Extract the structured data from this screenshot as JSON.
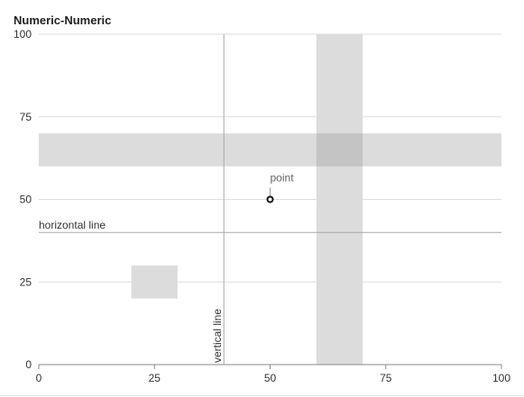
{
  "chart_data": {
    "type": "scatter",
    "title": "Numeric-Numeric",
    "xlabel": "",
    "ylabel": "",
    "xlim": [
      0,
      100
    ],
    "ylim": [
      0,
      100
    ],
    "x_ticks": [
      0,
      25,
      50,
      75,
      100
    ],
    "y_ticks": [
      0,
      25,
      50,
      75,
      100
    ],
    "grid": "horizontal",
    "points": [
      {
        "x": 50,
        "y": 50,
        "label": "point"
      }
    ],
    "annotations": {
      "vertical_line": {
        "x": 40,
        "label": "vertical line"
      },
      "horizontal_line": {
        "y": 40,
        "label": "horizontal line"
      },
      "vertical_band": {
        "x": [
          60,
          70
        ]
      },
      "horizontal_band": {
        "y": [
          60,
          70
        ]
      },
      "rect": {
        "x": [
          20,
          30
        ],
        "y": [
          20,
          30
        ]
      }
    },
    "colors": {
      "band": "#dcdcdc",
      "band_overlap": "#c4c4c4",
      "rect": "#dcdcdc",
      "annotation_line": "#a8a8a8",
      "grid": "#dedede",
      "axis": "#888888",
      "point_stroke": "#111111"
    }
  }
}
